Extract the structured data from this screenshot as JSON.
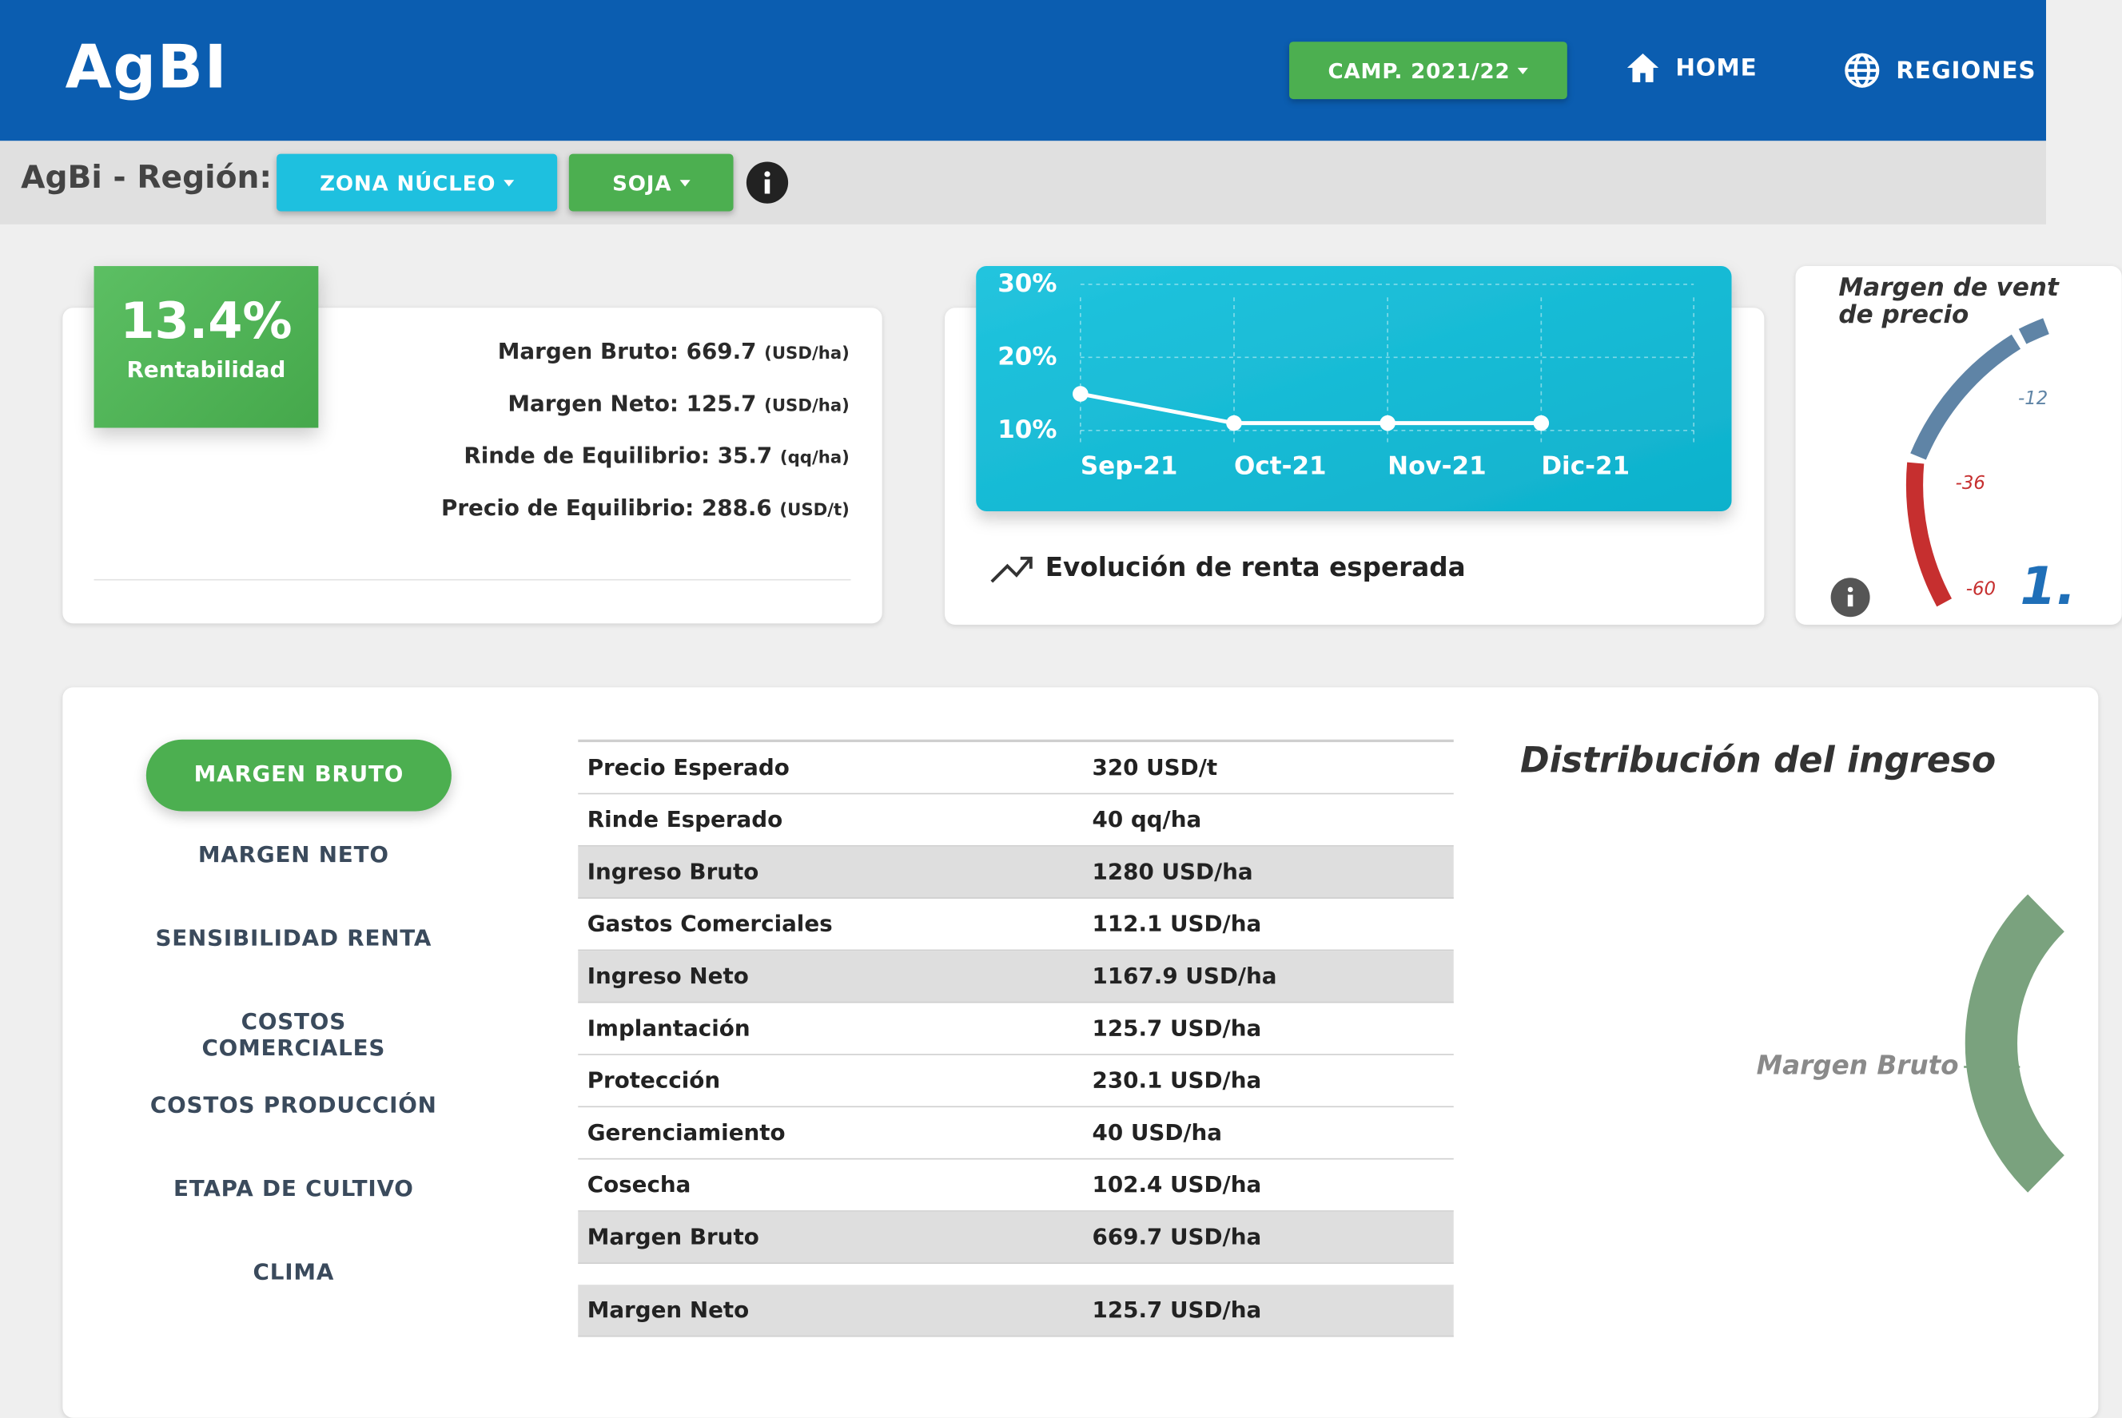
{
  "header": {
    "logo": "AgBI",
    "campaign": "CAMP. 2021/22",
    "nav": [
      "HOME",
      "REGIONES"
    ]
  },
  "region_bar": {
    "label": "AgBi - Región:",
    "zone": "ZONA NÚCLEO",
    "crop": "SOJA"
  },
  "summary": {
    "rentabilidad": "13.4%",
    "rentabilidad_label": "Rentabilidad",
    "metrics": [
      {
        "label": "Margen Bruto: 669.7",
        "unit": "(USD/ha)"
      },
      {
        "label": "Margen Neto: 125.7",
        "unit": "(USD/ha)"
      },
      {
        "label": "Rinde de Equilibrio: 35.7",
        "unit": "(qq/ha)"
      },
      {
        "label": "Precio de Equilibrio: 288.6",
        "unit": "(USD/t)"
      }
    ]
  },
  "chart_data": {
    "type": "line",
    "caption": "Evolución de renta esperada",
    "categories": [
      "Sep-21",
      "Oct-21",
      "Nov-21",
      "Dic-21"
    ],
    "values": [
      15,
      11,
      11,
      11
    ],
    "color": "#ffffff",
    "ylim": [
      10,
      30
    ],
    "yticks": [
      {
        "value": 30,
        "label": "30%"
      },
      {
        "value": 20,
        "label": "20%"
      },
      {
        "value": 10,
        "label": "10%"
      }
    ],
    "grid": true
  },
  "gauge": {
    "title": [
      "Margen de vent",
      "de precio"
    ],
    "ticks": [
      "-12",
      "-36",
      "-60"
    ],
    "value": "1."
  },
  "menu": [
    "MARGEN BRUTO",
    "MARGEN NETO",
    "SENSIBILIDAD RENTA",
    "COSTOS COMERCIALES",
    "COSTOS PRODUCCIÓN",
    "ETAPA DE CULTIVO",
    "CLIMA"
  ],
  "table": {
    "rows": [
      [
        "Precio Esperado",
        "320 USD/t"
      ],
      [
        "Rinde Esperado",
        "40 qq/ha"
      ],
      [
        "Ingreso Bruto",
        "1280 USD/ha"
      ],
      [
        "Gastos Comerciales",
        "112.1 USD/ha"
      ],
      [
        "Ingreso Neto",
        "1167.9 USD/ha"
      ],
      [
        "Implantación",
        "125.7 USD/ha"
      ],
      [
        "Protección",
        "230.1 USD/ha"
      ],
      [
        "Gerenciamiento",
        "40 USD/ha"
      ],
      [
        "Cosecha",
        "102.4 USD/ha"
      ],
      [
        "Margen Bruto",
        "669.7 USD/ha"
      ],
      [
        "Margen Neto",
        "125.7 USD/ha"
      ]
    ]
  },
  "distribution": {
    "title": "Distribución del ingreso",
    "label": "Margen Bruto"
  }
}
